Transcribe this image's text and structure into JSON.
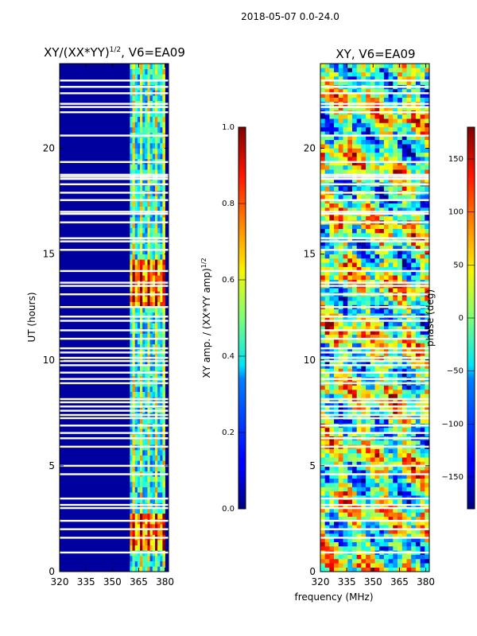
{
  "suptitle": "2018-05-07 0.0-24.0",
  "chart_data": [
    {
      "type": "heatmap",
      "title_main": "XY/(XX*YY)",
      "title_sup": "1/2",
      "title_rest": ", V6=EA09",
      "ylabel": "UT (hours)",
      "x_ticks": [
        "320",
        "335",
        "350",
        "365",
        "380"
      ],
      "x_tick_values": [
        320,
        335,
        350,
        365,
        380
      ],
      "y_ticks": [
        "0",
        "5",
        "10",
        "15",
        "20"
      ],
      "y_tick_values": [
        0,
        5,
        10,
        15,
        20
      ],
      "xlim": [
        320,
        382
      ],
      "ylim": [
        0,
        24
      ],
      "active_band_mhz": [
        360,
        380
      ],
      "colorbar": {
        "label_main": "XY amp. / (XX*YY amp)",
        "label_sup": "1/2",
        "ticks": [
          "0.0",
          "0.2",
          "0.4",
          "0.6",
          "0.8",
          "1.0"
        ],
        "tick_values": [
          0.0,
          0.2,
          0.4,
          0.6,
          0.8,
          1.0
        ],
        "range": [
          0,
          1
        ],
        "colormap": "jet"
      }
    },
    {
      "type": "heatmap",
      "title": "XY, V6=EA09",
      "xlabel": "frequency (MHz)",
      "x_ticks": [
        "320",
        "335",
        "350",
        "365",
        "380"
      ],
      "x_tick_values": [
        320,
        335,
        350,
        365,
        380
      ],
      "y_ticks": [
        "0",
        "5",
        "10",
        "15",
        "20"
      ],
      "y_tick_values": [
        0,
        5,
        10,
        15,
        20
      ],
      "xlim": [
        320,
        382
      ],
      "ylim": [
        0,
        24
      ],
      "colorbar": {
        "label": "phase (deg)",
        "ticks": [
          "−150",
          "−100",
          "−50",
          "0",
          "50",
          "100",
          "150"
        ],
        "tick_values": [
          -150,
          -100,
          -50,
          0,
          50,
          100,
          150
        ],
        "range": [
          -180,
          180
        ],
        "colormap": "jet"
      }
    }
  ],
  "flagged_rows_hours": [
    0.9,
    1.6,
    2.0,
    2.4,
    3.0,
    3.15,
    3.45,
    4.6,
    5.0,
    5.9,
    6.3,
    6.55,
    6.9,
    7.25,
    7.4,
    7.6,
    7.8,
    8.0,
    8.15,
    8.9,
    9.1,
    9.4,
    9.75,
    9.95,
    10.1,
    10.35,
    10.55,
    11.0,
    11.4,
    11.85,
    12.05,
    12.5,
    13.1,
    13.5,
    13.65,
    14.2,
    15.2,
    15.6,
    15.75,
    16.5,
    16.9,
    17.0,
    17.55,
    17.9,
    18.3,
    18.55,
    18.65,
    18.75,
    19.35,
    20.6,
    21.7,
    21.95,
    22.1,
    22.6,
    22.9,
    23.2
  ]
}
